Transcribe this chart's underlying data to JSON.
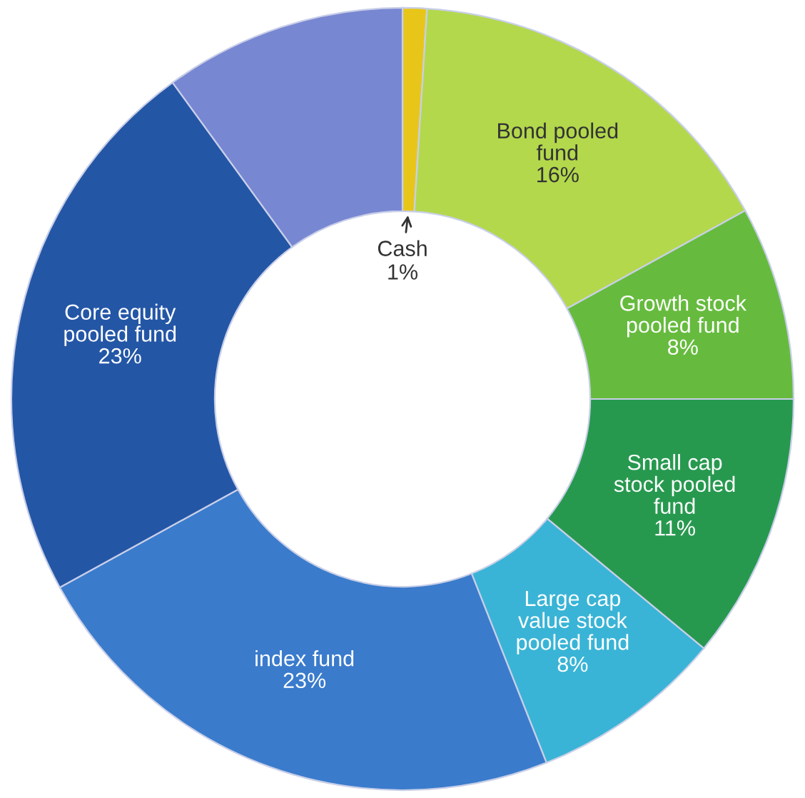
{
  "chart_data": {
    "type": "donut",
    "categories": [
      "Cash",
      "Bond pooled\nfund",
      "Growth stock\npooled fund",
      "Small cap\nstock pooled\nfund",
      "Large cap\nvalue stock\npooled fund",
      "index fund",
      "Core equity\npooled fund",
      null
    ],
    "values": [
      1,
      16,
      8,
      11,
      8,
      23,
      23,
      10
    ],
    "value_labels": [
      "1%",
      "16%",
      "8%",
      "11%",
      "8%",
      "23%",
      "23%",
      null
    ],
    "colors": [
      "#e8c619",
      "#b3d84c",
      "#66bb3e",
      "#27994f",
      "#39b4d6",
      "#3a7bcc",
      "#2456a6",
      "#7887d2"
    ]
  }
}
